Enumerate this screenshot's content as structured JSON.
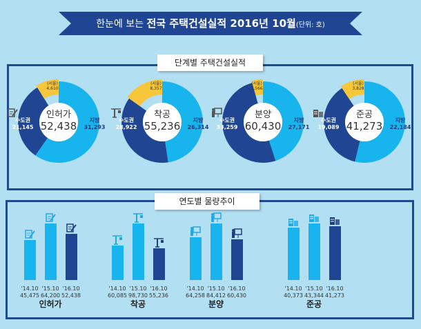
{
  "header": {
    "title_prefix": "한눈에 보는 ",
    "title_bold": "전국 주택건설실적 2016년 10월",
    "unit": "(단위: 호)"
  },
  "colors": {
    "background": "#b3dff2",
    "navy": "#1f4593",
    "light_blue": "#17b4ee",
    "seoul_yellow": "#f7c63a",
    "frame": "#1c4a8e"
  },
  "chart_data": [
    {
      "type": "pie",
      "title": "단계별 주택건설실적",
      "donuts": [
        {
          "name": "인허가",
          "icon": "document-pen-icon",
          "total": "52,438",
          "capital_label": "수도권",
          "capital": 21145,
          "capital_text": "21,145",
          "local_label": "지방",
          "local": 31293,
          "local_text": "31,293",
          "seoul_label": "(서울)",
          "seoul": 4610,
          "seoul_text": "4,610"
        },
        {
          "name": "착공",
          "icon": "crane-icon",
          "total": "55,236",
          "capital_label": "수도권",
          "capital": 28922,
          "capital_text": "28,922",
          "local_label": "지방",
          "local": 26314,
          "local_text": "26,314",
          "seoul_label": "(서울)",
          "seoul": 8357,
          "seoul_text": "8,357"
        },
        {
          "name": "분양",
          "icon": "presentation-board-icon",
          "total": "60,430",
          "capital_label": "수도권",
          "capital": 33259,
          "capital_text": "33,259",
          "local_label": "지방",
          "local": 27171,
          "local_text": "27,171",
          "seoul_label": "(서울)",
          "seoul": 2566,
          "seoul_text": "2,566"
        },
        {
          "name": "준공",
          "icon": "buildings-icon",
          "total": "41,273",
          "capital_label": "수도권",
          "capital": 19089,
          "capital_text": "19,089",
          "local_label": "지방",
          "local": 22184,
          "local_text": "22,184",
          "seoul_label": "(서울)",
          "seoul": 3828,
          "seoul_text": "3,828"
        }
      ]
    },
    {
      "type": "bar",
      "title": "연도별 물량추이",
      "groups": [
        {
          "name": "인허가",
          "icon": "document-pen-icon",
          "categories": [
            "'14.10",
            "'15.10",
            "'16.10"
          ],
          "values": [
            45475,
            64200,
            52438
          ],
          "value_text": [
            "45,475",
            "64,200",
            "52,438"
          ]
        },
        {
          "name": "착공",
          "icon": "crane-icon",
          "categories": [
            "'14.10",
            "'15.10",
            "'16.10"
          ],
          "values": [
            60085,
            98730,
            55236
          ],
          "value_text": [
            "60,085",
            "98,730",
            "55,236"
          ]
        },
        {
          "name": "분양",
          "icon": "presentation-board-icon",
          "categories": [
            "'14.10",
            "'15.10",
            "'16.10"
          ],
          "values": [
            64258,
            84412,
            60430
          ],
          "value_text": [
            "64,258",
            "84,412",
            "60,430"
          ]
        },
        {
          "name": "준공",
          "icon": "buildings-icon",
          "categories": [
            "'14.10",
            "'15.10",
            "'16.10"
          ],
          "values": [
            40373,
            43344,
            41273
          ],
          "value_text": [
            "40,373",
            "43,344",
            "41,273"
          ]
        }
      ]
    }
  ]
}
